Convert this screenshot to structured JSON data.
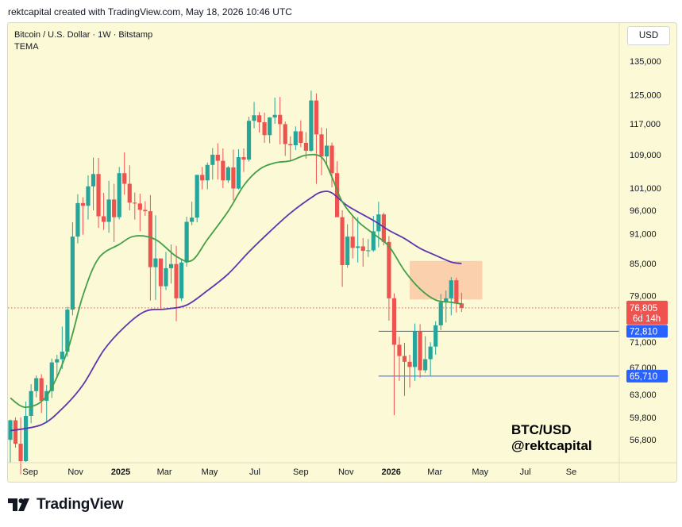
{
  "header": "rektcapital created with TradingView.com, May 18, 2026 10:46 UTC",
  "legend": {
    "symbol": "Bitcoin / U.S. Dollar · 1W · Bitstamp",
    "indicator": "TEMA"
  },
  "currency": "USD",
  "watermark": {
    "line1": "BTC/USD",
    "line2": "@rektcapital"
  },
  "footer_logo": "TradingView",
  "colors": {
    "up": "#26a69a",
    "down": "#ef5350",
    "ema_fast": "#43a047",
    "ema_slow": "#5e35b1",
    "level": "#2962ff",
    "zone": "#f9c9a6",
    "background": "#fcf9d6"
  },
  "chart_data": {
    "type": "candlestick",
    "scale": "log",
    "y_ticks": [
      135000,
      125000,
      117000,
      109000,
      101000,
      96000,
      91000,
      85000,
      79000,
      71000,
      67000,
      63000,
      59800,
      56800
    ],
    "x_ticks": [
      {
        "label": "Sep",
        "date": "2024-09-01",
        "year": false
      },
      {
        "label": "Nov",
        "date": "2024-11-01",
        "year": false
      },
      {
        "label": "2025",
        "date": "2025-01-01",
        "year": true
      },
      {
        "label": "Mar",
        "date": "2025-03-01",
        "year": false
      },
      {
        "label": "May",
        "date": "2025-05-01",
        "year": false
      },
      {
        "label": "Jul",
        "date": "2025-07-01",
        "year": false
      },
      {
        "label": "Sep",
        "date": "2025-09-01",
        "year": false
      },
      {
        "label": "Nov",
        "date": "2025-11-01",
        "year": false
      },
      {
        "label": "2026",
        "date": "2026-01-01",
        "year": true
      },
      {
        "label": "Mar",
        "date": "2026-03-01",
        "year": false
      },
      {
        "label": "May",
        "date": "2026-05-01",
        "year": false
      },
      {
        "label": "Jul",
        "date": "2026-07-01",
        "year": false
      },
      {
        "label": "Se",
        "date": "2026-09-01",
        "year": false
      }
    ],
    "first_candle_date": "2024-08-05",
    "candles": [
      [
        56800,
        59500,
        53900,
        59400
      ],
      [
        59400,
        59800,
        55800,
        56300
      ],
      [
        56300,
        59800,
        52500,
        54100
      ],
      [
        54100,
        62000,
        54000,
        60000
      ],
      [
        60000,
        64500,
        59000,
        63500
      ],
      [
        63500,
        65800,
        62600,
        65400
      ],
      [
        65400,
        66000,
        60400,
        62100
      ],
      [
        62100,
        64400,
        59000,
        63500
      ],
      [
        63500,
        68400,
        62500,
        67800
      ],
      [
        67800,
        69000,
        65600,
        68300
      ],
      [
        68300,
        73600,
        66800,
        69500
      ],
      [
        69500,
        77000,
        68700,
        76500
      ],
      [
        76500,
        93400,
        75500,
        90400
      ],
      [
        90400,
        99600,
        89000,
        97600
      ],
      [
        97600,
        98900,
        90800,
        97000
      ],
      [
        97000,
        104000,
        94000,
        101400
      ],
      [
        101400,
        108300,
        96000,
        104300
      ],
      [
        104300,
        108200,
        92200,
        94700
      ],
      [
        94700,
        99900,
        91800,
        93500
      ],
      [
        93500,
        102700,
        91200,
        98400
      ],
      [
        98400,
        102000,
        89300,
        94500
      ],
      [
        94500,
        106000,
        94000,
        104500
      ],
      [
        104500,
        109600,
        99500,
        102000
      ],
      [
        102000,
        106400,
        96000,
        97700
      ],
      [
        97700,
        100000,
        94000,
        97500
      ],
      [
        97500,
        99700,
        91500,
        96100
      ],
      [
        96100,
        98000,
        94800,
        95800
      ],
      [
        95800,
        99400,
        78100,
        84300
      ],
      [
        84300,
        94900,
        78200,
        86000
      ],
      [
        86000,
        85800,
        76700,
        80700
      ],
      [
        80700,
        87300,
        80000,
        84100
      ],
      [
        84100,
        88800,
        81200,
        84900
      ],
      [
        84900,
        88500,
        74500,
        78500
      ],
      [
        78500,
        86000,
        78000,
        85200
      ],
      [
        85200,
        94600,
        84400,
        93500
      ],
      [
        93500,
        97900,
        92800,
        94400
      ],
      [
        94400,
        104100,
        93400,
        104100
      ],
      [
        104100,
        106000,
        100700,
        102800
      ],
      [
        102800,
        107100,
        100700,
        106500
      ],
      [
        106500,
        110700,
        103000,
        109000
      ],
      [
        109000,
        111900,
        103000,
        107500
      ],
      [
        107500,
        110600,
        101000,
        102800
      ],
      [
        102800,
        106200,
        102200,
        105900
      ],
      [
        105900,
        110300,
        98200,
        100900
      ],
      [
        100900,
        110400,
        100700,
        108400
      ],
      [
        108400,
        110600,
        104800,
        107800
      ],
      [
        107800,
        118900,
        107300,
        117800
      ],
      [
        117800,
        123000,
        115800,
        119300
      ],
      [
        119300,
        120200,
        114700,
        117400
      ],
      [
        117400,
        120000,
        112000,
        114000
      ],
      [
        114000,
        118800,
        111900,
        118700
      ],
      [
        118700,
        124200,
        117000,
        119400
      ],
      [
        119400,
        124400,
        111600,
        116900
      ],
      [
        116900,
        117600,
        108700,
        111700
      ],
      [
        111700,
        113700,
        107300,
        111400
      ],
      [
        111400,
        116300,
        110200,
        115000
      ],
      [
        115000,
        117900,
        110900,
        112000
      ],
      [
        112000,
        114800,
        108000,
        110000
      ],
      [
        110000,
        126200,
        109700,
        123400
      ],
      [
        123400,
        125400,
        102000,
        114200
      ],
      [
        114200,
        116000,
        104000,
        108600
      ],
      [
        108600,
        115800,
        106500,
        111300
      ],
      [
        111300,
        112100,
        101200,
        104500
      ],
      [
        104500,
        107400,
        94800,
        94500
      ],
      [
        94500,
        96000,
        80600,
        84700
      ],
      [
        84700,
        93000,
        84200,
        90400
      ],
      [
        90400,
        94600,
        86000,
        88100
      ],
      [
        88100,
        94500,
        85200,
        88400
      ],
      [
        88400,
        90100,
        84400,
        87500
      ],
      [
        87500,
        89900,
        86300,
        87600
      ],
      [
        87600,
        94800,
        87300,
        91500
      ],
      [
        91500,
        97900,
        88200,
        95100
      ],
      [
        95100,
        95500,
        88600,
        89300
      ],
      [
        89300,
        90500,
        74600,
        78500
      ],
      [
        78500,
        79400,
        60100,
        70600
      ],
      [
        70600,
        71900,
        65000,
        68800
      ],
      [
        68800,
        70900,
        62800,
        67900
      ],
      [
        67900,
        69000,
        64000,
        67100
      ],
      [
        67100,
        74100,
        65000,
        72800
      ],
      [
        72800,
        74000,
        65500,
        66600
      ],
      [
        66600,
        72000,
        66200,
        68300
      ],
      [
        68300,
        71000,
        65800,
        70300
      ],
      [
        70300,
        74500,
        69000,
        73800
      ],
      [
        73800,
        79300,
        73000,
        77800
      ],
      [
        77800,
        79900,
        74300,
        78500
      ],
      [
        78500,
        82400,
        75500,
        81800
      ],
      [
        81800,
        82300,
        76000,
        77600
      ],
      [
        77600,
        79500,
        76100,
        76805
      ]
    ],
    "ema_fast": [
      [
        0,
        62500
      ],
      [
        3,
        61200
      ],
      [
        7,
        62800
      ],
      [
        11,
        69600
      ],
      [
        14,
        79000
      ],
      [
        17,
        86000
      ],
      [
        21,
        88800
      ],
      [
        24,
        90500
      ],
      [
        28,
        89800
      ],
      [
        32,
        86400
      ],
      [
        35,
        85600
      ],
      [
        38,
        89800
      ],
      [
        42,
        95800
      ],
      [
        45,
        101600
      ],
      [
        48,
        105400
      ],
      [
        51,
        107000
      ],
      [
        54,
        107500
      ],
      [
        57,
        108900
      ],
      [
        60,
        108400
      ],
      [
        62,
        103600
      ],
      [
        64,
        97900
      ],
      [
        67,
        93600
      ],
      [
        70,
        91000
      ],
      [
        73,
        88400
      ],
      [
        76,
        83600
      ],
      [
        79,
        80200
      ],
      [
        82,
        78200
      ],
      [
        85,
        77800
      ],
      [
        87,
        77500
      ]
    ],
    "ema_slow": [
      [
        0,
        58000
      ],
      [
        6,
        58800
      ],
      [
        10,
        61000
      ],
      [
        14,
        64400
      ],
      [
        18,
        69700
      ],
      [
        22,
        73500
      ],
      [
        26,
        76200
      ],
      [
        30,
        76600
      ],
      [
        34,
        77300
      ],
      [
        38,
        79900
      ],
      [
        42,
        83000
      ],
      [
        46,
        87300
      ],
      [
        50,
        91400
      ],
      [
        54,
        95400
      ],
      [
        58,
        98800
      ],
      [
        60,
        100100
      ],
      [
        62,
        99900
      ],
      [
        65,
        97000
      ],
      [
        70,
        93800
      ],
      [
        73,
        91700
      ],
      [
        76,
        90000
      ],
      [
        79,
        88000
      ],
      [
        82,
        86600
      ],
      [
        85,
        85300
      ],
      [
        87,
        85000
      ]
    ],
    "zone": {
      "from_index": 77,
      "to_index": 91,
      "top": 85500,
      "bottom": 78300
    },
    "levels": [
      {
        "price": 72810,
        "from_index": 71,
        "label": "72,810"
      },
      {
        "price": 65710,
        "from_index": 71,
        "label": "65,710"
      }
    ],
    "last_price": {
      "value": 76805,
      "label": "76,805",
      "countdown": "6d 14h"
    }
  }
}
